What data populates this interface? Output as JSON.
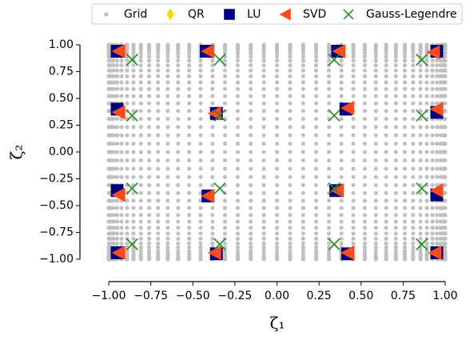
{
  "chart_data": {
    "type": "scatter",
    "xlabel": "ζ₁",
    "ylabel": "ζ₂",
    "xlim": [
      -1.1,
      1.1
    ],
    "ylim": [
      -1.1,
      1.1
    ],
    "xticks": [
      {
        "value": -1,
        "label": "−1.00"
      },
      {
        "value": -0.75,
        "label": "−0.75"
      },
      {
        "value": -0.5,
        "label": "−0.50"
      },
      {
        "value": -0.25,
        "label": "−0.25"
      },
      {
        "value": 0,
        "label": "0.00"
      },
      {
        "value": 0.25,
        "label": "0.25"
      },
      {
        "value": 0.5,
        "label": "0.50"
      },
      {
        "value": 0.75,
        "label": "0.75"
      },
      {
        "value": 1,
        "label": "1.00"
      }
    ],
    "yticks": [
      {
        "value": -1,
        "label": "−1.00"
      },
      {
        "value": -0.75,
        "label": "−0.75"
      },
      {
        "value": -0.5,
        "label": "−0.50"
      },
      {
        "value": -0.25,
        "label": "−0.25"
      },
      {
        "value": 0,
        "label": "0.00"
      },
      {
        "value": 0.25,
        "label": "0.25"
      },
      {
        "value": 0.5,
        "label": "0.50"
      },
      {
        "value": 0.75,
        "label": "0.75"
      },
      {
        "value": 1,
        "label": "1.00"
      }
    ],
    "legend": "top",
    "grid_points": {
      "name": "Grid",
      "color": "#c0c0c0",
      "x": [
        -1.0,
        -0.997,
        -0.988,
        -0.972,
        -0.951,
        -0.924,
        -0.891,
        -0.853,
        -0.809,
        -0.76,
        -0.707,
        -0.649,
        -0.588,
        -0.522,
        -0.454,
        -0.383,
        -0.309,
        -0.233,
        -0.156,
        -0.078,
        0.0,
        0.078,
        0.156,
        0.233,
        0.309,
        0.383,
        0.454,
        0.522,
        0.588,
        0.649,
        0.707,
        0.76,
        0.809,
        0.853,
        0.891,
        0.924,
        0.951,
        0.972,
        0.988,
        0.997,
        1.0
      ],
      "y": [
        -1.0,
        -0.997,
        -0.988,
        -0.972,
        -0.951,
        -0.924,
        -0.891,
        -0.853,
        -0.809,
        -0.76,
        -0.707,
        -0.649,
        -0.588,
        -0.522,
        -0.454,
        -0.383,
        -0.309,
        -0.233,
        -0.156,
        -0.078,
        0.0,
        0.078,
        0.156,
        0.233,
        0.309,
        0.383,
        0.454,
        0.522,
        0.588,
        0.649,
        0.707,
        0.76,
        0.809,
        0.853,
        0.891,
        0.924,
        0.951,
        0.972,
        0.988,
        0.997,
        1.0
      ]
    },
    "series": [
      {
        "name": "QR",
        "color": "#ffd700",
        "marker": "diamond",
        "x": [
          -0.95,
          -0.42,
          0.36,
          0.95,
          -0.95,
          -0.36,
          0.41,
          0.95,
          -0.95,
          -0.41,
          0.35,
          0.95,
          -0.95,
          -0.36,
          0.42,
          0.95
        ],
        "y": [
          0.95,
          0.95,
          0.95,
          0.95,
          0.42,
          0.36,
          0.4,
          0.37,
          -0.36,
          -0.41,
          -0.36,
          -0.4,
          -0.94,
          -0.95,
          -0.95,
          -0.94
        ]
      },
      {
        "name": "LU",
        "color": "#000080",
        "marker": "square",
        "x": [
          -0.95,
          -0.42,
          0.36,
          0.95,
          -0.95,
          -0.36,
          0.41,
          0.95,
          -0.95,
          -0.41,
          0.35,
          0.95,
          -0.95,
          -0.36,
          0.42,
          0.95
        ],
        "y": [
          0.94,
          0.94,
          0.94,
          0.94,
          0.4,
          0.36,
          0.4,
          0.37,
          -0.36,
          -0.41,
          -0.36,
          -0.4,
          -0.94,
          -0.95,
          -0.95,
          -0.94
        ]
      },
      {
        "name": "SVD",
        "color": "#ff4a1c",
        "marker": "triangle-left",
        "x": [
          -0.94,
          -0.41,
          0.37,
          0.93,
          -0.94,
          -0.37,
          0.42,
          0.95,
          -0.94,
          -0.41,
          0.36,
          0.95,
          -0.94,
          -0.37,
          0.42,
          0.94
        ],
        "y": [
          0.94,
          0.94,
          0.94,
          0.93,
          0.37,
          0.36,
          0.41,
          0.4,
          -0.4,
          -0.41,
          -0.36,
          -0.36,
          -0.94,
          -0.94,
          -0.94,
          -0.94
        ]
      },
      {
        "name": "Gauss-Legendre",
        "color": "#228b22",
        "marker": "x",
        "x": [
          -0.861,
          -0.34,
          0.34,
          0.861,
          -0.861,
          -0.34,
          0.34,
          0.861,
          -0.861,
          -0.34,
          0.34,
          0.861,
          -0.861,
          -0.34,
          0.34,
          0.861
        ],
        "y": [
          0.861,
          0.861,
          0.861,
          0.861,
          0.34,
          0.34,
          0.34,
          0.34,
          -0.34,
          -0.34,
          -0.34,
          -0.34,
          -0.861,
          -0.861,
          -0.861,
          -0.861
        ]
      }
    ]
  }
}
